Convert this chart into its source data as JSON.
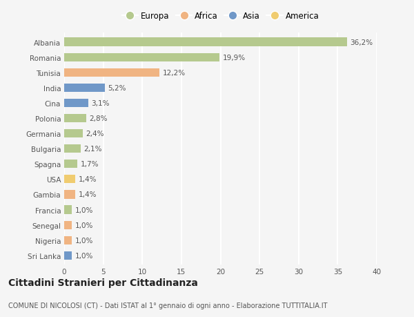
{
  "countries": [
    "Albania",
    "Romania",
    "Tunisia",
    "India",
    "Cina",
    "Polonia",
    "Germania",
    "Bulgaria",
    "Spagna",
    "USA",
    "Gambia",
    "Francia",
    "Senegal",
    "Nigeria",
    "Sri Lanka"
  ],
  "values": [
    36.2,
    19.9,
    12.2,
    5.2,
    3.1,
    2.8,
    2.4,
    2.1,
    1.7,
    1.4,
    1.4,
    1.0,
    1.0,
    1.0,
    1.0
  ],
  "labels": [
    "36,2%",
    "19,9%",
    "12,2%",
    "5,2%",
    "3,1%",
    "2,8%",
    "2,4%",
    "2,1%",
    "1,7%",
    "1,4%",
    "1,4%",
    "1,0%",
    "1,0%",
    "1,0%",
    "1,0%"
  ],
  "colors": [
    "#b5c98e",
    "#b5c98e",
    "#f0b482",
    "#7098c8",
    "#7098c8",
    "#b5c98e",
    "#b5c98e",
    "#b5c98e",
    "#b5c98e",
    "#f0cc70",
    "#f0b482",
    "#b5c98e",
    "#f0b482",
    "#f0b482",
    "#7098c8"
  ],
  "continent_colors": {
    "Europa": "#b5c98e",
    "Africa": "#f0b482",
    "Asia": "#7098c8",
    "America": "#f0cc70"
  },
  "legend_labels": [
    "Europa",
    "Africa",
    "Asia",
    "America"
  ],
  "xlim": [
    0,
    40
  ],
  "xticks": [
    0,
    5,
    10,
    15,
    20,
    25,
    30,
    35,
    40
  ],
  "title": "Cittadini Stranieri per Cittadinanza",
  "subtitle": "COMUNE DI NICOLOSI (CT) - Dati ISTAT al 1° gennaio di ogni anno - Elaborazione TUTTITALIA.IT",
  "background_color": "#f5f5f5",
  "grid_color": "#ffffff",
  "bar_height": 0.55,
  "label_fontsize": 7.5,
  "tick_fontsize": 7.5,
  "title_fontsize": 10,
  "subtitle_fontsize": 7.0
}
